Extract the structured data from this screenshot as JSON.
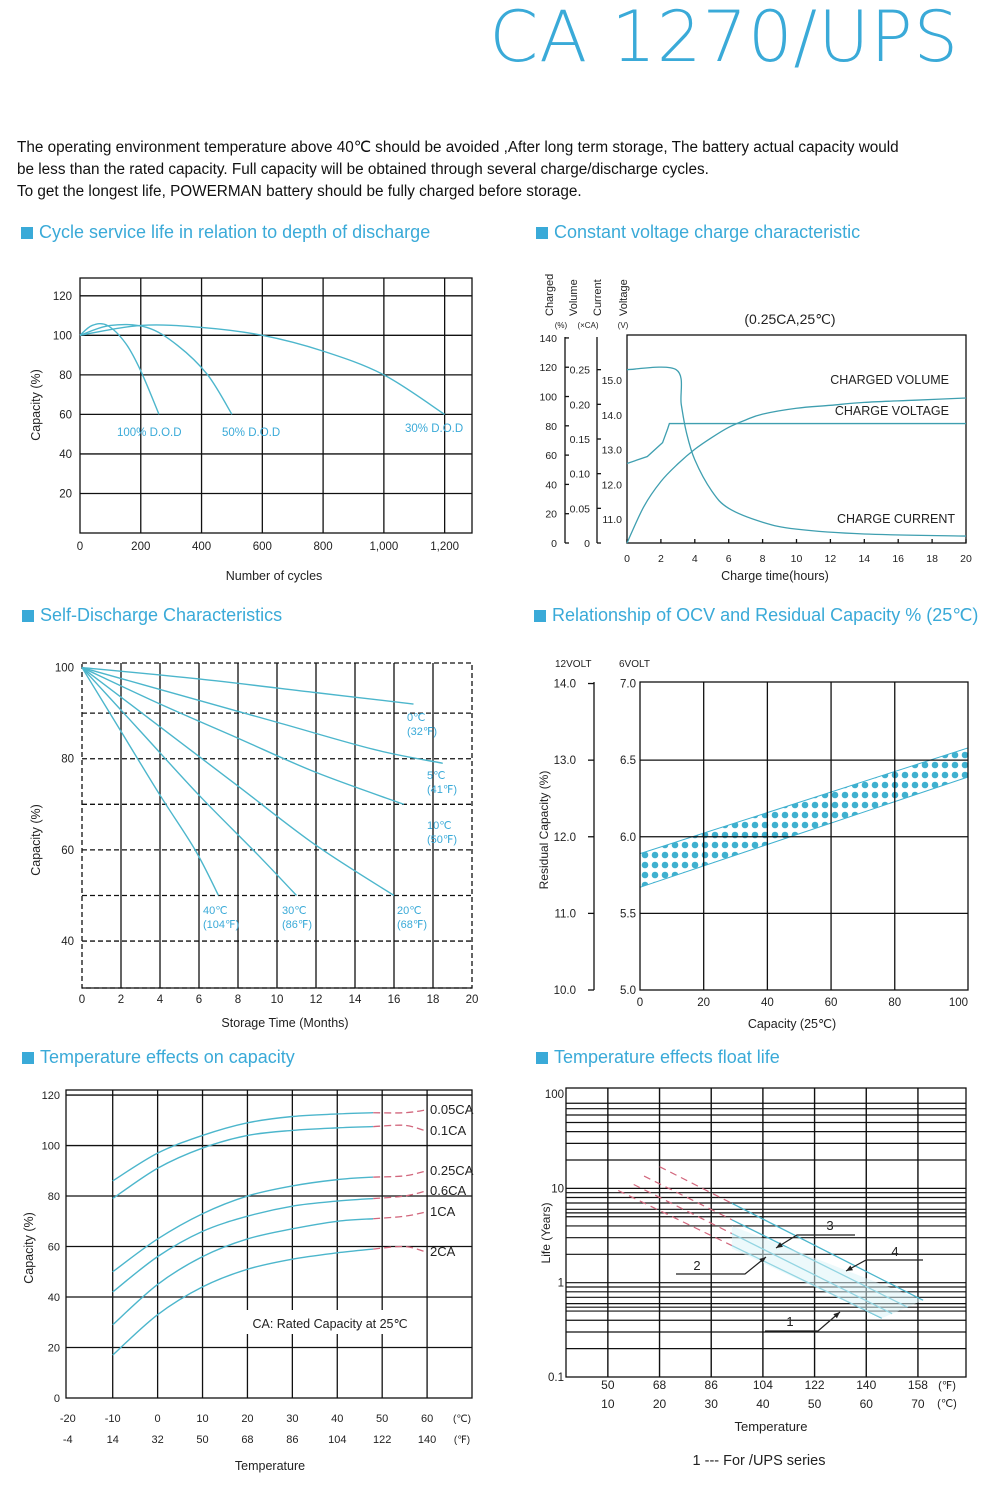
{
  "header": {
    "title": "CA 1270/UPS"
  },
  "intro": {
    "lines": [
      "The operating environment temperature above 40℃ should be avoided ,After long term storage, The battery actual capacity would",
      "be less than the rated capacity. Full capacity will be obtained through several charge/discharge cycles.",
      "To get the longest life, POWERMAN battery should be fully charged before storage."
    ]
  },
  "sections": [
    "Cycle service life in relation to depth of discharge",
    "Constant voltage charge characteristic",
    "Self-Discharge Characteristics",
    "Relationship of OCV and Residual Capacity % (25℃)",
    "Temperature effects on capacity",
    "Temperature effects float life"
  ],
  "colors": {
    "accent": "#3aaad8",
    "curve": "#4cb6cc",
    "dashed": "#d2677d"
  },
  "footnote": "1 --- For /UPS series",
  "chart_data": [
    {
      "type": "line",
      "title": "Cycle service life in relation to depth of discharge",
      "xlabel": "Number of cycles",
      "ylabel": "Capacity (%)",
      "xlim": [
        0,
        1290
      ],
      "ylim": [
        0,
        129
      ],
      "xticks": [
        0,
        200,
        400,
        600,
        800,
        1000,
        1200
      ],
      "xtick_labels": [
        "0",
        "200",
        "400",
        "600",
        "800",
        "1,000",
        "1,200"
      ],
      "yticks": [
        20,
        40,
        60,
        80,
        100,
        120
      ],
      "ytick_labels": [
        "20",
        "40",
        "60",
        "80",
        "100",
        "120"
      ],
      "grid": true,
      "series": [
        {
          "name": "100% D.O.D",
          "points": [
            [
              0,
              100
            ],
            [
              40,
              105
            ],
            [
              90,
              105
            ],
            [
              150,
              96
            ],
            [
              200,
              82
            ],
            [
              260,
              60
            ]
          ]
        },
        {
          "name": "50% D.O.D",
          "points": [
            [
              0,
              100
            ],
            [
              100,
              105
            ],
            [
              220,
              104
            ],
            [
              320,
              95
            ],
            [
              420,
              80
            ],
            [
              500,
              60
            ]
          ]
        },
        {
          "name": "30% D.O.D",
          "points": [
            [
              0,
              100
            ],
            [
              200,
              105
            ],
            [
              400,
              104
            ],
            [
              600,
              100
            ],
            [
              800,
              92
            ],
            [
              1000,
              80
            ],
            [
              1200,
              60
            ]
          ]
        }
      ]
    },
    {
      "type": "line",
      "title": "Constant voltage charge characteristic",
      "subtitle": "(0.25CA,25℃)",
      "xlabel": "Charge time(hours)",
      "axis_headers": [
        "Charged",
        "Volume",
        "Current",
        "Voltage"
      ],
      "axis_units": [
        "(%)",
        "(×CA)",
        "(V)"
      ],
      "xlim": [
        0,
        20
      ],
      "xticks": [
        0,
        2,
        4,
        6,
        8,
        10,
        12,
        14,
        16,
        18,
        20
      ],
      "xtick_labels": [
        "0",
        "2",
        "4",
        "6",
        "8",
        "10",
        "12",
        "14",
        "16",
        "18",
        "20"
      ],
      "axes": {
        "charged": {
          "ylim": [
            0,
            142
          ],
          "ticks": [
            0,
            20,
            40,
            60,
            80,
            100,
            120,
            140
          ],
          "labels": [
            "0",
            "20",
            "40",
            "60",
            "80",
            "100",
            "120",
            "140"
          ]
        },
        "current": {
          "ylim": [
            0,
            0.3
          ],
          "ticks": [
            0,
            0.05,
            0.1,
            0.15,
            0.2,
            0.25
          ],
          "labels": [
            "0",
            "0.05",
            "0.10",
            "0.15",
            "0.20",
            "0.25"
          ]
        },
        "voltage": {
          "ylim": [
            10.31,
            16.3
          ],
          "ticks": [
            11,
            12,
            13,
            14,
            15
          ],
          "labels": [
            "11.0",
            "12.0",
            "13.0",
            "14.0",
            "15.0"
          ]
        }
      },
      "series": [
        {
          "name": "CHARGED VOLUME",
          "axis": "charged",
          "points": [
            [
              0,
              0
            ],
            [
              1,
              25
            ],
            [
              2,
              42
            ],
            [
              3,
              54
            ],
            [
              4,
              64
            ],
            [
              5,
              72
            ],
            [
              6,
              79
            ],
            [
              7,
              84
            ],
            [
              8,
              88
            ],
            [
              10,
              92
            ],
            [
              12,
              94
            ],
            [
              14,
              96
            ],
            [
              17,
              97.5
            ],
            [
              20,
              99
            ]
          ]
        },
        {
          "name": "CHARGE VOLTAGE",
          "axis": "voltage",
          "linear": true,
          "points": [
            [
              0,
              12.6
            ],
            [
              1.2,
              12.8
            ],
            [
              2.1,
              13.2
            ],
            [
              2.4,
              13.6
            ],
            [
              2.5,
              13.75
            ],
            [
              20,
              13.75
            ]
          ]
        },
        {
          "name": "CHARGE CURRENT",
          "axis": "current",
          "points": [
            [
              0,
              0.25
            ],
            [
              2.9,
              0.25
            ],
            [
              3.2,
              0.2
            ],
            [
              3.5,
              0.16
            ],
            [
              4,
              0.12
            ],
            [
              5,
              0.075
            ],
            [
              6,
              0.05
            ],
            [
              8,
              0.03
            ],
            [
              10,
              0.02
            ],
            [
              14,
              0.013
            ],
            [
              20,
              0.01
            ]
          ]
        }
      ]
    },
    {
      "type": "line",
      "title": "Self-Discharge Characteristics",
      "xlabel": "Storage Time (Months)",
      "ylabel": "Capacity (%)",
      "xlim": [
        0,
        20
      ],
      "ylim": [
        29.7,
        101
      ],
      "xticks": [
        0,
        2,
        4,
        6,
        8,
        10,
        12,
        14,
        16,
        18,
        20
      ],
      "xtick_labels": [
        "0",
        "2",
        "4",
        "6",
        "8",
        "10",
        "12",
        "14",
        "16",
        "18",
        "20"
      ],
      "yticks": [
        40,
        60,
        80,
        100
      ],
      "ytick_labels": [
        "40",
        "60",
        "80",
        "100"
      ],
      "hgrid_dashed": [
        40,
        50,
        60,
        70,
        80,
        90
      ],
      "series": [
        {
          "name": "0℃",
          "alt": "(32℉)",
          "points": [
            [
              0,
              100
            ],
            [
              6,
              97.5
            ],
            [
              12,
              94.5
            ],
            [
              17,
              92
            ]
          ]
        },
        {
          "name": "5℃",
          "alt": "(41℉)",
          "points": [
            [
              0,
              100
            ],
            [
              5,
              94
            ],
            [
              10,
              88
            ],
            [
              15,
              82
            ],
            [
              18.5,
              79
            ]
          ]
        },
        {
          "name": "10℃",
          "alt": "(50℉)",
          "points": [
            [
              0,
              100
            ],
            [
              4,
              92
            ],
            [
              8,
              84.5
            ],
            [
              12,
              77
            ],
            [
              16.5,
              70
            ]
          ]
        },
        {
          "name": "20℃",
          "alt": "(68℉)",
          "points": [
            [
              0,
              100
            ],
            [
              4,
              87
            ],
            [
              8,
              74
            ],
            [
              12,
              61
            ],
            [
              16,
              50
            ]
          ]
        },
        {
          "name": "30℃",
          "alt": "(86℉)",
          "points": [
            [
              0,
              100
            ],
            [
              3,
              86
            ],
            [
              6,
              72
            ],
            [
              9,
              59
            ],
            [
              11,
              50
            ]
          ]
        },
        {
          "name": "40℃",
          "alt": "(104℉)",
          "points": [
            [
              0,
              100
            ],
            [
              2,
              86
            ],
            [
              4,
              72
            ],
            [
              5.8,
              60
            ],
            [
              7,
              50
            ]
          ]
        }
      ]
    },
    {
      "type": "area",
      "title": "Relationship of OCV and Residual Capacity % (25℃)",
      "xlabel": "Capacity (25℃)",
      "ylabel": "Residual Capacity (%)",
      "left_header": "12VOLT",
      "right_header": "6VOLT",
      "xlim": [
        0,
        103
      ],
      "ylim": [
        5,
        7.01
      ],
      "xticks": [
        0,
        20,
        40,
        60,
        80,
        100
      ],
      "xtick_labels": [
        "0",
        "20",
        "40",
        "60",
        "80",
        "100"
      ],
      "yticks": [
        5,
        5.5,
        6,
        6.5,
        7
      ],
      "ytick_labels": [
        "5.0",
        "5.5",
        "6.0",
        "6.5",
        "7.0"
      ],
      "ytick_labels_12v": [
        "10.0",
        "11.0",
        "12.0",
        "13.0",
        "14.0"
      ],
      "band": {
        "lower": [
          [
            0,
            5.67
          ],
          [
            103,
            6.39
          ]
        ],
        "upper": [
          [
            0,
            5.89
          ],
          [
            103,
            6.58
          ]
        ]
      }
    },
    {
      "type": "line",
      "title": "Temperature effects on capacity",
      "xlabel": "Temperature",
      "ylabel": "Capacity (%)",
      "annotation": "CA: Rated Capacity at 25℃",
      "xlim": [
        -20.4,
        70
      ],
      "ylim": [
        0,
        122
      ],
      "xticks": [
        -20,
        -10,
        0,
        10,
        20,
        30,
        40,
        50,
        60
      ],
      "xtick_labels": [
        "-20",
        "-10",
        "0",
        "10",
        "20",
        "30",
        "40",
        "50",
        "60"
      ],
      "xtick_labels_f": [
        "-4",
        "14",
        "32",
        "50",
        "68",
        "86",
        "104",
        "122",
        "140"
      ],
      "x_units": [
        "(℃)",
        "(℉)"
      ],
      "yticks": [
        0,
        20,
        40,
        60,
        80,
        100,
        120
      ],
      "ytick_labels": [
        "0",
        "20",
        "40",
        "60",
        "80",
        "100",
        "120"
      ],
      "dashed_from": 48,
      "series": [
        {
          "name": "0.05CA",
          "points": [
            [
              -10,
              86
            ],
            [
              0,
              97
            ],
            [
              10,
              104
            ],
            [
              20,
              109
            ],
            [
              30,
              111.5
            ],
            [
              40,
              112.5
            ],
            [
              48,
              113
            ],
            [
              55,
              113
            ]
          ]
        },
        {
          "name": "0.1CA",
          "points": [
            [
              -10,
              79
            ],
            [
              0,
              91
            ],
            [
              10,
              99
            ],
            [
              20,
              104
            ],
            [
              30,
              106
            ],
            [
              40,
              107
            ],
            [
              48,
              107.5
            ],
            [
              55,
              108
            ]
          ]
        },
        {
          "name": "0.25CA",
          "points": [
            [
              -10,
              50
            ],
            [
              0,
              63
            ],
            [
              10,
              73
            ],
            [
              20,
              80
            ],
            [
              30,
              84
            ],
            [
              40,
              86.5
            ],
            [
              48,
              87.5
            ],
            [
              55,
              88
            ]
          ]
        },
        {
          "name": "0.6CA",
          "points": [
            [
              -10,
              42
            ],
            [
              0,
              56
            ],
            [
              10,
              66
            ],
            [
              20,
              72
            ],
            [
              30,
              76
            ],
            [
              40,
              78
            ],
            [
              48,
              79
            ],
            [
              55,
              80
            ]
          ]
        },
        {
          "name": "1CA",
          "points": [
            [
              -10,
              29
            ],
            [
              0,
              45
            ],
            [
              10,
              56
            ],
            [
              20,
              63
            ],
            [
              30,
              67
            ],
            [
              40,
              70
            ],
            [
              48,
              71
            ],
            [
              55,
              72
            ]
          ]
        },
        {
          "name": "2CA",
          "points": [
            [
              -10,
              17
            ],
            [
              0,
              33
            ],
            [
              10,
              44
            ],
            [
              20,
              51
            ],
            [
              30,
              55
            ],
            [
              40,
              57.5
            ],
            [
              48,
              59
            ],
            [
              55,
              60
            ]
          ]
        }
      ]
    },
    {
      "type": "line",
      "title": "Temperature effects float life",
      "xlabel": "Temperature",
      "ylabel": "Life (Years)",
      "yscale": "log",
      "xlim": [
        1.9,
        79.3
      ],
      "ylim": [
        0.1,
        116
      ],
      "xticks": [
        10,
        20,
        30,
        40,
        50,
        60,
        70
      ],
      "xtick_labels": [
        "10",
        "20",
        "30",
        "40",
        "50",
        "60",
        "70"
      ],
      "xtick_labels_f": [
        "50",
        "68",
        "86",
        "104",
        "122",
        "140",
        "158"
      ],
      "x_units": [
        "(℉)",
        "(℃)"
      ],
      "yticks": [
        0.1,
        1,
        10,
        100
      ],
      "ytick_labels": [
        "0.1",
        "1",
        "10",
        "100"
      ],
      "hgrid": [
        0.2,
        0.3,
        0.4,
        0.5,
        0.55,
        0.6,
        0.7,
        0.8,
        0.9,
        1,
        2,
        3,
        4,
        5,
        5.5,
        6,
        7,
        8,
        9,
        10,
        20,
        30,
        40,
        50,
        60,
        70,
        80
      ],
      "dashed_until": 34,
      "series": [
        {
          "name": "1",
          "points": [
            [
              12,
              9.5
            ],
            [
              63,
              0.42
            ]
          ]
        },
        {
          "name": "2",
          "points": [
            [
              15,
              11
            ],
            [
              65,
              0.47
            ]
          ]
        },
        {
          "name": "3",
          "points": [
            [
              17,
              13.5
            ],
            [
              68,
              0.55
            ]
          ]
        },
        {
          "name": "4",
          "points": [
            [
              20,
              17
            ],
            [
              71,
              0.65
            ]
          ]
        }
      ]
    }
  ]
}
